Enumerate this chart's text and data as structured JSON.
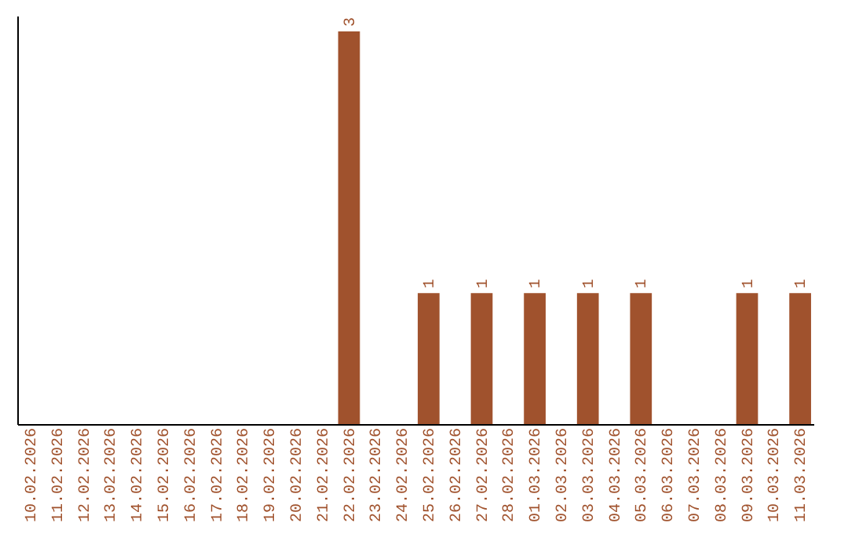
{
  "chart_data": {
    "type": "bar",
    "categories": [
      "10.02.2026",
      "11.02.2026",
      "12.02.2026",
      "13.02.2026",
      "14.02.2026",
      "15.02.2026",
      "16.02.2026",
      "17.02.2026",
      "18.02.2026",
      "19.02.2026",
      "20.02.2026",
      "21.02.2026",
      "22.02.2026",
      "23.02.2026",
      "24.02.2026",
      "25.02.2026",
      "26.02.2026",
      "27.02.2026",
      "28.02.2026",
      "01.03.2026",
      "02.03.2026",
      "03.03.2026",
      "04.03.2026",
      "05.03.2026",
      "06.03.2026",
      "07.03.2026",
      "08.03.2026",
      "09.03.2026",
      "10.03.2026",
      "11.03.2026"
    ],
    "values": [
      null,
      null,
      null,
      null,
      null,
      null,
      null,
      null,
      null,
      null,
      null,
      null,
      3,
      null,
      null,
      1,
      null,
      1,
      null,
      1,
      null,
      1,
      null,
      1,
      null,
      null,
      null,
      1,
      null,
      1
    ],
    "data_labels": true,
    "color": "#a0522d",
    "ylim": [
      0,
      3.12
    ],
    "tick_labels": "x"
  }
}
